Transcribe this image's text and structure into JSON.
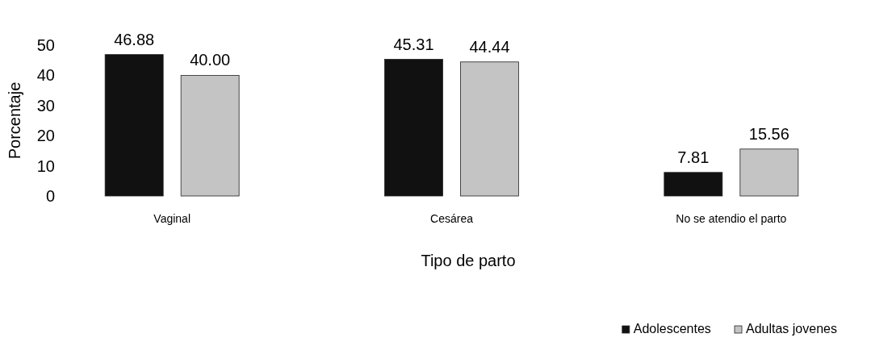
{
  "chart_data": {
    "type": "bar",
    "xlabel": "Tipo de parto",
    "ylabel": "Porcentaje",
    "categories": [
      "Vaginal",
      "Cesárea",
      "No se atendio el parto"
    ],
    "series": [
      {
        "name": "Adolescentes",
        "color": "#111111",
        "values": [
          46.88,
          45.31,
          7.81
        ],
        "value_labels": [
          "46.88",
          "45.31",
          "7.81"
        ]
      },
      {
        "name": "Adultas jovenes",
        "color": "#c4c4c4",
        "values": [
          40.0,
          44.44,
          15.56
        ],
        "value_labels": [
          "40.00",
          "44.44",
          "15.56"
        ]
      }
    ],
    "ylim": [
      0,
      50
    ],
    "yticks": [
      0,
      10,
      20,
      30,
      40,
      50
    ],
    "legend": "bottom right"
  }
}
